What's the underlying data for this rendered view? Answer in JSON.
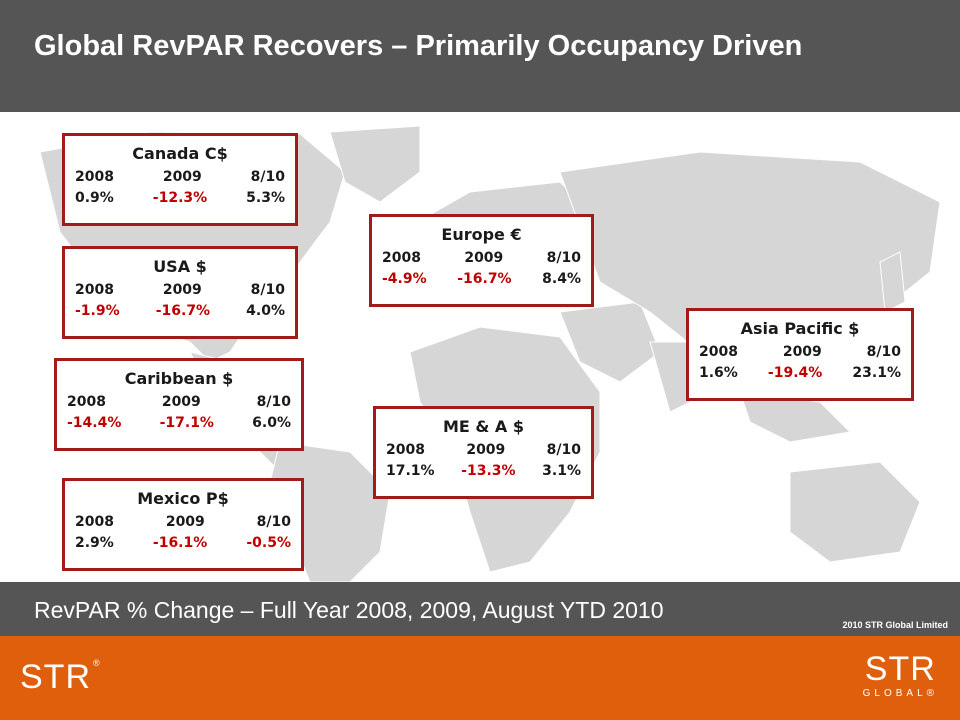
{
  "title": "Global RevPAR Recovers – Primarily Occupancy Driven",
  "subtitle": "RevPAR % Change – Full Year 2008, 2009, August YTD 2010",
  "copyright": "2010 STR Global Limited",
  "colors": {
    "header_gray": "#555555",
    "box_border": "#a21b1b",
    "negative": "#c00000",
    "footer_orange": "#e05f0c",
    "map_land": "#d6d6d6"
  },
  "footer": {
    "logo_left": "STR",
    "logo_left_mark": "®",
    "logo_right_top": "STR",
    "logo_right_bottom": "GLOBAL®"
  },
  "regions": {
    "canada": {
      "name": "Canada C$",
      "years": [
        "2008",
        "2009",
        "8/10"
      ],
      "values": [
        "0.9%",
        "-12.3%",
        "5.3%"
      ]
    },
    "usa": {
      "name": "USA  $",
      "years": [
        "2008",
        "2009",
        "8/10"
      ],
      "values": [
        "-1.9%",
        "-16.7%",
        "4.0%"
      ]
    },
    "caribbean": {
      "name": "Caribbean  $",
      "years": [
        "2008",
        "2009",
        "8/10"
      ],
      "values": [
        "-14.4%",
        "-17.1%",
        "6.0%"
      ]
    },
    "mexico": {
      "name": "Mexico  P$",
      "years": [
        "2008",
        "2009",
        "8/10"
      ],
      "values": [
        "2.9%",
        "-16.1%",
        "-0.5%"
      ]
    },
    "europe": {
      "name": "Europe €",
      "years": [
        "2008",
        "2009",
        "8/10"
      ],
      "values": [
        "-4.9%",
        "-16.7%",
        "8.4%"
      ]
    },
    "mea": {
      "name": "ME & A $",
      "years": [
        "2008",
        "2009",
        "8/10"
      ],
      "values": [
        "17.1%",
        "-13.3%",
        "3.1%"
      ]
    },
    "asia": {
      "name": "Asia Pacific $",
      "years": [
        "2008",
        "2009",
        "8/10"
      ],
      "values": [
        "1.6%",
        "-19.4%",
        "23.1%"
      ]
    }
  }
}
